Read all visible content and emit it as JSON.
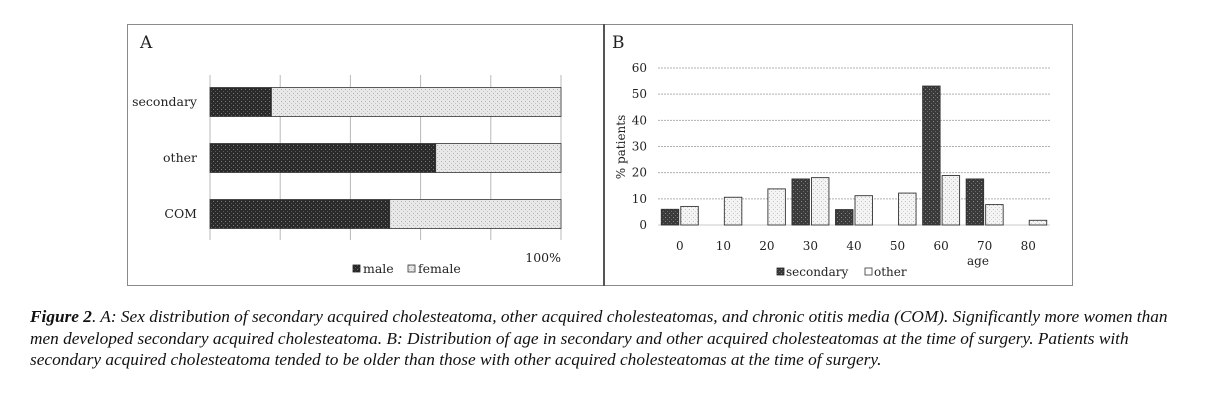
{
  "chart_data": [
    {
      "panel": "A",
      "type": "bar",
      "orientation": "horizontal",
      "stacked": "percent",
      "title": "",
      "categories": [
        "secondary",
        "other",
        "COM"
      ],
      "series": [
        {
          "name": "male",
          "values": [
            17.5,
            64.3,
            51.2
          ],
          "color": "#2b2b2b"
        },
        {
          "name": "female",
          "values": [
            82.5,
            35.7,
            48.8
          ],
          "color": "#dcdcdc"
        }
      ],
      "xlim": [
        0,
        100
      ],
      "x_gridlines": [
        0,
        20,
        40,
        60,
        80,
        100
      ],
      "x_end_label": "100%",
      "grid": true,
      "legend": "bottom",
      "legend_entries": [
        "male",
        "female"
      ]
    },
    {
      "panel": "B",
      "type": "bar",
      "title": "",
      "xlabel": "age",
      "ylabel": "% patients",
      "categories": [
        "0",
        "10",
        "20",
        "30",
        "40",
        "50",
        "60",
        "70",
        "80"
      ],
      "series": [
        {
          "name": "secondary",
          "values": [
            6,
            0,
            0,
            17.6,
            5.9,
            0,
            53.1,
            17.6,
            0
          ],
          "color": "#444444"
        },
        {
          "name": "other",
          "values": [
            7.1,
            10.6,
            13.8,
            18.1,
            11.2,
            12.2,
            18.9,
            7.8,
            1.8
          ],
          "color": "#eeeeee"
        }
      ],
      "ylim": [
        0,
        60
      ],
      "yticks": [
        0,
        10,
        20,
        30,
        40,
        50,
        60
      ],
      "grid": true,
      "legend": "bottom",
      "legend_entries": [
        "secondary",
        "other"
      ]
    }
  ],
  "panels": {
    "a_label": "A",
    "b_label": "B"
  },
  "caption": {
    "figure_label": "Figure 2",
    "text": ". A: Sex distribution of secondary acquired cholesteatoma, other acquired cholesteatomas, and chronic otitis media (COM). Significantly more women than men developed secondary acquired cholesteatoma. B: Distribution of age in secondary and other acquired cholesteatomas at the time of surgery. Patients with secondary acquired cholesteatoma tended to be older than those with other acquired cholesteatomas at the time of surgery."
  }
}
